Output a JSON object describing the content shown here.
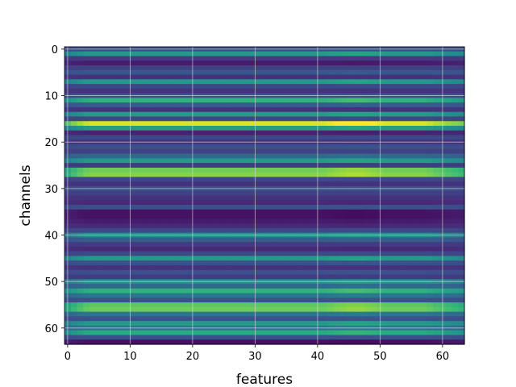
{
  "chart_data": {
    "type": "heatmap",
    "title": "",
    "xlabel": "features",
    "ylabel": "channels",
    "xlim": [
      -0.5,
      63.5
    ],
    "ylim": [
      63.5,
      -0.5
    ],
    "x_ticks": [
      "0",
      "10",
      "20",
      "30",
      "40",
      "50",
      "60"
    ],
    "y_ticks": [
      "0",
      "10",
      "20",
      "30",
      "40",
      "50",
      "60"
    ],
    "grid": true,
    "colormap": "viridis",
    "n_rows": 64,
    "n_cols": 64,
    "row_levels": [
      0.25,
      0.55,
      0.18,
      0.08,
      0.2,
      0.28,
      0.15,
      0.55,
      0.22,
      0.15,
      0.25,
      0.65,
      0.3,
      0.15,
      0.55,
      0.22,
      0.95,
      0.55,
      0.1,
      0.22,
      0.15,
      0.25,
      0.2,
      0.35,
      0.55,
      0.18,
      0.78,
      0.82,
      0.22,
      0.15,
      0.25,
      0.2,
      0.15,
      0.12,
      0.25,
      0.05,
      0.05,
      0.08,
      0.12,
      0.22,
      0.5,
      0.3,
      0.18,
      0.12,
      0.22,
      0.55,
      0.25,
      0.15,
      0.25,
      0.18,
      0.5,
      0.35,
      0.65,
      0.4,
      0.25,
      0.75,
      0.78,
      0.4,
      0.25,
      0.55,
      0.4,
      0.62,
      0.25,
      0.05
    ],
    "col_profile": [
      0.72,
      0.82,
      0.9,
      0.97,
      1.0,
      1.0,
      1.0,
      1.0,
      1.0,
      1.0,
      1.0,
      1.0,
      1.0,
      1.0,
      1.0,
      1.0,
      1.0,
      1.0,
      1.0,
      1.0,
      1.0,
      1.0,
      1.0,
      1.0,
      1.0,
      1.0,
      1.0,
      1.0,
      1.0,
      1.0,
      1.0,
      1.0,
      1.0,
      1.0,
      1.0,
      1.0,
      1.0,
      1.0,
      1.0,
      1.0,
      1.0,
      1.0,
      1.03,
      1.06,
      1.08,
      1.1,
      1.1,
      1.1,
      1.08,
      1.06,
      1.03,
      1.0,
      1.0,
      1.0,
      1.0,
      1.0,
      1.0,
      1.0,
      0.97,
      0.93,
      0.9,
      0.86,
      0.83,
      0.8
    ]
  }
}
